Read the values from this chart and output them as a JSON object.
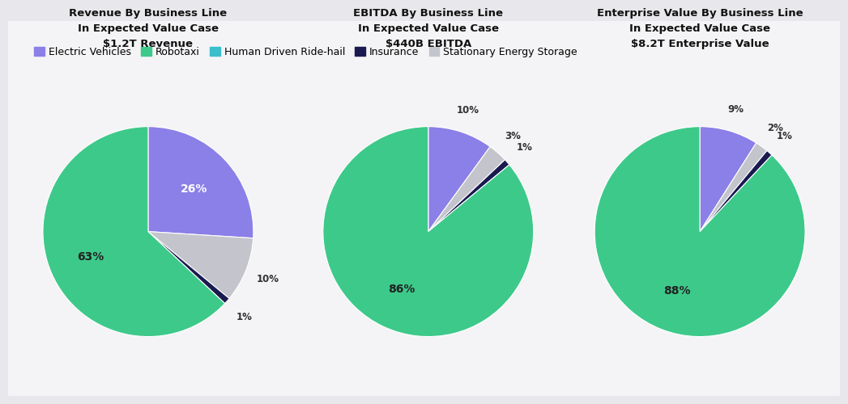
{
  "background_color": "#e8e8ec",
  "card_color": "#f4f4f6",
  "legend_items": [
    {
      "label": "Electric Vehicles",
      "color": "#8B7FE8"
    },
    {
      "label": "Robotaxi",
      "color": "#3DC98A"
    },
    {
      "label": "Human Driven Ride-hail",
      "color": "#3BBFCC"
    },
    {
      "label": "Insurance",
      "color": "#1a1a50"
    },
    {
      "label": "Stationary Energy Storage",
      "color": "#c4c4cc"
    }
  ],
  "charts": [
    {
      "title": "Revenue By Business Line\nIn Expected Value Case\n$1.2T Revenue",
      "slices": [
        {
          "label": "Electric Vehicles",
          "value": 26,
          "color": "#8B7FE8",
          "text_color": "white",
          "inside": true
        },
        {
          "label": "Stationary Energy Storage",
          "value": 10,
          "color": "#c4c4cc",
          "text_color": "#333333",
          "inside": false
        },
        {
          "label": "Insurance",
          "value": 1,
          "color": "#1a1a50",
          "text_color": "#333333",
          "inside": false
        },
        {
          "label": "Robotaxi",
          "value": 63,
          "color": "#3DC98A",
          "text_color": "#222222",
          "inside": true
        }
      ]
    },
    {
      "title": "EBITDA By Business Line\nIn Expected Value Case\n$440B EBITDA",
      "slices": [
        {
          "label": "Electric Vehicles",
          "value": 10,
          "color": "#8B7FE8",
          "text_color": "white",
          "inside": false
        },
        {
          "label": "Stationary Energy Storage",
          "value": 3,
          "color": "#c4c4cc",
          "text_color": "#333333",
          "inside": false
        },
        {
          "label": "Insurance",
          "value": 1,
          "color": "#1a1a50",
          "text_color": "#333333",
          "inside": false
        },
        {
          "label": "Robotaxi",
          "value": 86,
          "color": "#3DC98A",
          "text_color": "#222222",
          "inside": true
        }
      ]
    },
    {
      "title": "Enterprise Value By Business Line\nIn Expected Value Case\n$8.2T Enterprise Value",
      "slices": [
        {
          "label": "Electric Vehicles",
          "value": 9,
          "color": "#8B7FE8",
          "text_color": "white",
          "inside": false
        },
        {
          "label": "Stationary Energy Storage",
          "value": 2,
          "color": "#c4c4cc",
          "text_color": "#333333",
          "inside": false
        },
        {
          "label": "Insurance",
          "value": 1,
          "color": "#1a1a50",
          "text_color": "#333333",
          "inside": false
        },
        {
          "label": "Robotaxi",
          "value": 88,
          "color": "#3DC98A",
          "text_color": "#222222",
          "inside": true
        }
      ]
    }
  ]
}
